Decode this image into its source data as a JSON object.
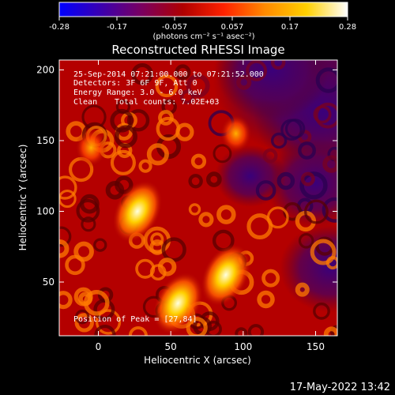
{
  "chart_data": {
    "type": "heatmap",
    "title": "Reconstructed RHESSI Image",
    "xlabel": "Heliocentric X (arcsec)",
    "ylabel": "Heliocentric Y (arcsec)",
    "xlim": [
      -27,
      165
    ],
    "ylim": [
      12,
      207
    ],
    "x_ticks": [
      0,
      50,
      100,
      150
    ],
    "y_ticks": [
      50,
      100,
      150,
      200
    ],
    "colorbar": {
      "min": -0.28,
      "max": 0.28,
      "ticks": [
        "-0.28",
        "-0.17",
        "-0.057",
        "0.057",
        "0.17",
        "0.28"
      ],
      "label": "(photons cm⁻² s⁻¹ asec⁻²)",
      "colors": [
        "#0000ff",
        "#3a00b0",
        "#7a0060",
        "#b00000",
        "#ff2200",
        "#ff8a00",
        "#ffd000",
        "#ffffff"
      ]
    },
    "bright_regions": [
      {
        "x": 27,
        "y": 100,
        "level": "high"
      },
      {
        "x": 55,
        "y": 35,
        "level": "high"
      },
      {
        "x": 88,
        "y": 55,
        "level": "high"
      },
      {
        "x": 95,
        "y": 155,
        "level": "medium"
      },
      {
        "x": -5,
        "y": 145,
        "level": "medium"
      }
    ],
    "annotations": {
      "time_range": "25-Sep-2014 07:21:00.000 to 07:21:52.000",
      "detectors": "Detectors: 3F 6F 9F, Att 0",
      "energy": "Energy Range: 3.0 - 6.0 keV",
      "method": "Clean",
      "total_counts": "Total counts: 7.02E+03",
      "peak": "Position of Peak = [27,84]"
    }
  },
  "footer": {
    "timestamp": "17-May-2022 13:42"
  }
}
